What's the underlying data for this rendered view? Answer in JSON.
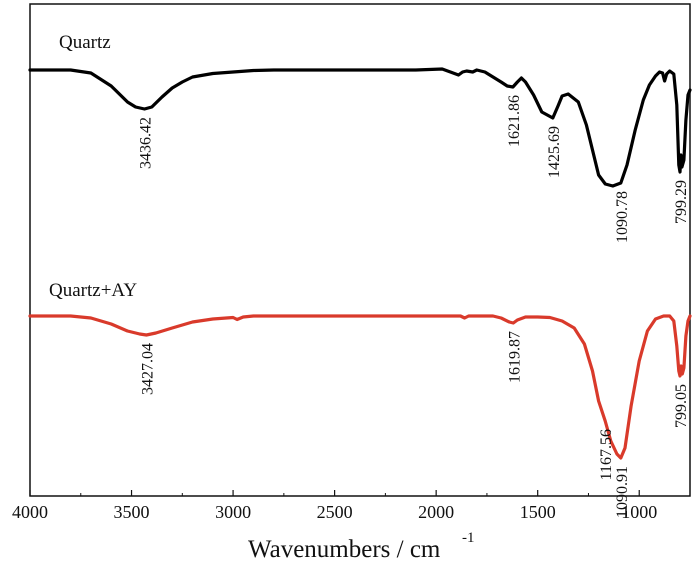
{
  "chart_data": {
    "type": "line",
    "xlabel": "Wavenumbers / cm",
    "xlabel_superscript": "-1",
    "xlim": [
      4000,
      750
    ],
    "x_reversed": true,
    "xticks": [
      4000,
      3500,
      3000,
      2500,
      2000,
      1500,
      1000
    ],
    "xtick_labels": [
      "4000",
      "3500",
      "3000",
      "2500",
      "2000",
      "1500",
      "1000"
    ],
    "y_axis_labeled": false,
    "series": [
      {
        "name": "Quartz",
        "color": "#000000",
        "points": [
          [
            4000,
            0.0
          ],
          [
            3800,
            0.0
          ],
          [
            3700,
            -0.03
          ],
          [
            3600,
            -0.16
          ],
          [
            3520,
            -0.32
          ],
          [
            3480,
            -0.37
          ],
          [
            3436.42,
            -0.39
          ],
          [
            3400,
            -0.37
          ],
          [
            3350,
            -0.27
          ],
          [
            3300,
            -0.18
          ],
          [
            3250,
            -0.12
          ],
          [
            3200,
            -0.07
          ],
          [
            3100,
            -0.035
          ],
          [
            3000,
            -0.02
          ],
          [
            2900,
            -0.005
          ],
          [
            2800,
            0.0
          ],
          [
            2500,
            0.0
          ],
          [
            2100,
            0.0
          ],
          [
            1970,
            0.01
          ],
          [
            1930,
            -0.02
          ],
          [
            1890,
            -0.05
          ],
          [
            1870,
            -0.02
          ],
          [
            1850,
            -0.01
          ],
          [
            1820,
            -0.02
          ],
          [
            1800,
            0.0
          ],
          [
            1760,
            -0.02
          ],
          [
            1720,
            -0.07
          ],
          [
            1680,
            -0.12
          ],
          [
            1650,
            -0.16
          ],
          [
            1621.86,
            -0.17
          ],
          [
            1600,
            -0.12
          ],
          [
            1580,
            -0.08
          ],
          [
            1560,
            -0.12
          ],
          [
            1520,
            -0.25
          ],
          [
            1480,
            -0.42
          ],
          [
            1425.69,
            -0.48
          ],
          [
            1400,
            -0.36
          ],
          [
            1380,
            -0.26
          ],
          [
            1350,
            -0.24
          ],
          [
            1300,
            -0.32
          ],
          [
            1260,
            -0.55
          ],
          [
            1230,
            -0.8
          ],
          [
            1200,
            -1.05
          ],
          [
            1167,
            -1.14
          ],
          [
            1130,
            -1.16
          ],
          [
            1090.78,
            -1.13
          ],
          [
            1060,
            -0.95
          ],
          [
            1020,
            -0.6
          ],
          [
            980,
            -0.3
          ],
          [
            950,
            -0.15
          ],
          [
            920,
            -0.06
          ],
          [
            900,
            -0.02
          ],
          [
            885,
            -0.03
          ],
          [
            875,
            -0.11
          ],
          [
            865,
            -0.04
          ],
          [
            850,
            -0.01
          ],
          [
            830,
            -0.04
          ],
          [
            815,
            -0.35
          ],
          [
            805,
            -0.95
          ],
          [
            799.29,
            -1.02
          ],
          [
            795,
            -0.85
          ],
          [
            790,
            -0.97
          ],
          [
            780,
            -0.9
          ],
          [
            770,
            -0.5
          ],
          [
            760,
            -0.25
          ],
          [
            750,
            -0.2
          ]
        ],
        "peaks": [
          {
            "x": 3436.42,
            "label": "3436.42"
          },
          {
            "x": 1621.86,
            "label": "1621.86"
          },
          {
            "x": 1425.69,
            "label": "1425.69"
          },
          {
            "x": 1090.78,
            "label": "1090.78"
          },
          {
            "x": 799.29,
            "label": "799.29"
          }
        ]
      },
      {
        "name": "Quartz+AY",
        "color": "#d93a2b",
        "points": [
          [
            4000,
            0.0
          ],
          [
            3800,
            0.0
          ],
          [
            3700,
            -0.02
          ],
          [
            3600,
            -0.08
          ],
          [
            3520,
            -0.15
          ],
          [
            3460,
            -0.18
          ],
          [
            3427.04,
            -0.19
          ],
          [
            3380,
            -0.17
          ],
          [
            3300,
            -0.12
          ],
          [
            3200,
            -0.06
          ],
          [
            3100,
            -0.03
          ],
          [
            3000,
            -0.015
          ],
          [
            2980,
            -0.035
          ],
          [
            2950,
            -0.01
          ],
          [
            2900,
            0.0
          ],
          [
            2500,
            0.0
          ],
          [
            2100,
            0.0
          ],
          [
            1880,
            0.0
          ],
          [
            1860,
            -0.02
          ],
          [
            1840,
            0.0
          ],
          [
            1720,
            0.0
          ],
          [
            1680,
            -0.02
          ],
          [
            1640,
            -0.06
          ],
          [
            1619.87,
            -0.07
          ],
          [
            1600,
            -0.04
          ],
          [
            1560,
            -0.01
          ],
          [
            1500,
            -0.01
          ],
          [
            1440,
            -0.015
          ],
          [
            1380,
            -0.05
          ],
          [
            1320,
            -0.12
          ],
          [
            1270,
            -0.28
          ],
          [
            1230,
            -0.55
          ],
          [
            1200,
            -0.85
          ],
          [
            1167.56,
            -1.05
          ],
          [
            1140,
            -1.25
          ],
          [
            1110,
            -1.38
          ],
          [
            1090.91,
            -1.42
          ],
          [
            1070,
            -1.32
          ],
          [
            1040,
            -0.9
          ],
          [
            1000,
            -0.45
          ],
          [
            960,
            -0.15
          ],
          [
            920,
            -0.03
          ],
          [
            880,
            0.0
          ],
          [
            850,
            0.0
          ],
          [
            830,
            -0.05
          ],
          [
            815,
            -0.3
          ],
          [
            805,
            -0.55
          ],
          [
            799.05,
            -0.6
          ],
          [
            794,
            -0.5
          ],
          [
            788,
            -0.58
          ],
          [
            780,
            -0.52
          ],
          [
            770,
            -0.2
          ],
          [
            760,
            -0.05
          ],
          [
            750,
            0.0
          ]
        ],
        "peaks": [
          {
            "x": 3427.04,
            "label": "3427.04"
          },
          {
            "x": 1619.87,
            "label": "1619.87"
          },
          {
            "x": 1167.56,
            "label": "1167.56"
          },
          {
            "x": 1090.91,
            "label": "1090.91"
          },
          {
            "x": 799.05,
            "label": "799.05"
          }
        ]
      }
    ]
  }
}
